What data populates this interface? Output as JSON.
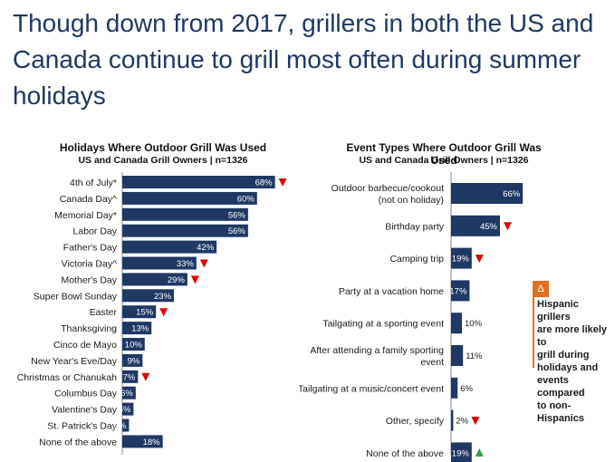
{
  "headline": "Though down from 2017, grillers in both the US and Canada continue to grill most often during summer holidays",
  "colors": {
    "bar": "#1f3864",
    "down": "#e00000",
    "up": "#2e9e3e",
    "note": "#e07020"
  },
  "chart_data": [
    {
      "type": "bar",
      "orientation": "horizontal",
      "title": "Holidays Where Outdoor Grill Was Used",
      "subtitle": "US and Canada Grill Owners | n=1326",
      "categories": [
        "4th of July*",
        "Canada Day^",
        "Memorial Day*",
        "Labor Day",
        "Father's Day",
        "Victoria Day^",
        "Mother's Day",
        "Super Bowl Sunday",
        "Easter",
        "Thanksgiving",
        "Cinco de Mayo",
        "New Year's Eve/Day",
        "Christmas or Chanukah",
        "Columbus Day",
        "Valentine's Day",
        "St. Patrick's Day",
        "None of the above"
      ],
      "values": [
        68,
        60,
        56,
        56,
        42,
        33,
        29,
        23,
        15,
        13,
        10,
        9,
        7,
        6,
        5,
        3,
        18
      ],
      "labels": [
        "68%",
        "60%",
        "56%",
        "56%",
        "42%",
        "33%",
        "29%",
        "23%",
        "15%",
        "13%",
        "10%",
        "9%",
        "7%",
        "6%",
        "5%",
        "3%",
        "18%"
      ],
      "markers": [
        "down",
        "",
        "",
        "",
        "",
        "down",
        "down",
        "",
        "down",
        "",
        "",
        "",
        "down",
        "",
        "",
        "",
        ""
      ],
      "xlim": [
        0,
        100
      ]
    },
    {
      "type": "bar",
      "orientation": "horizontal",
      "title": "Event Types Where Outdoor Grill Was Used",
      "subtitle": "US and Canada Grill Owners | n=1326",
      "categories": [
        [
          "Outdoor barbecue/cookout",
          "(not on holiday)"
        ],
        [
          "Birthday party"
        ],
        [
          "Camping trip"
        ],
        [
          "Party at a vacation home"
        ],
        [
          "Tailgating at a sporting event"
        ],
        [
          "After attending a family sporting",
          "event"
        ],
        [
          "Tailgating at a music/concert event"
        ],
        [
          "Other, specify"
        ],
        [
          "None of the above"
        ]
      ],
      "values": [
        66,
        45,
        19,
        17,
        10,
        11,
        6,
        2,
        19
      ],
      "labels": [
        "66%",
        "45%",
        "19%",
        "17%",
        "10%",
        "11%",
        "6%",
        "2%",
        "19%"
      ],
      "markers": [
        "",
        "down",
        "down",
        "",
        "",
        "",
        "",
        "down",
        "up"
      ],
      "xlim": [
        0,
        100
      ]
    }
  ],
  "note": {
    "icon": "Δ",
    "icon_name": "delta-icon",
    "lines": [
      "Hispanic grillers",
      "are more likely to",
      "grill during",
      "holidays and",
      "events compared",
      "to non-Hispanics"
    ]
  }
}
